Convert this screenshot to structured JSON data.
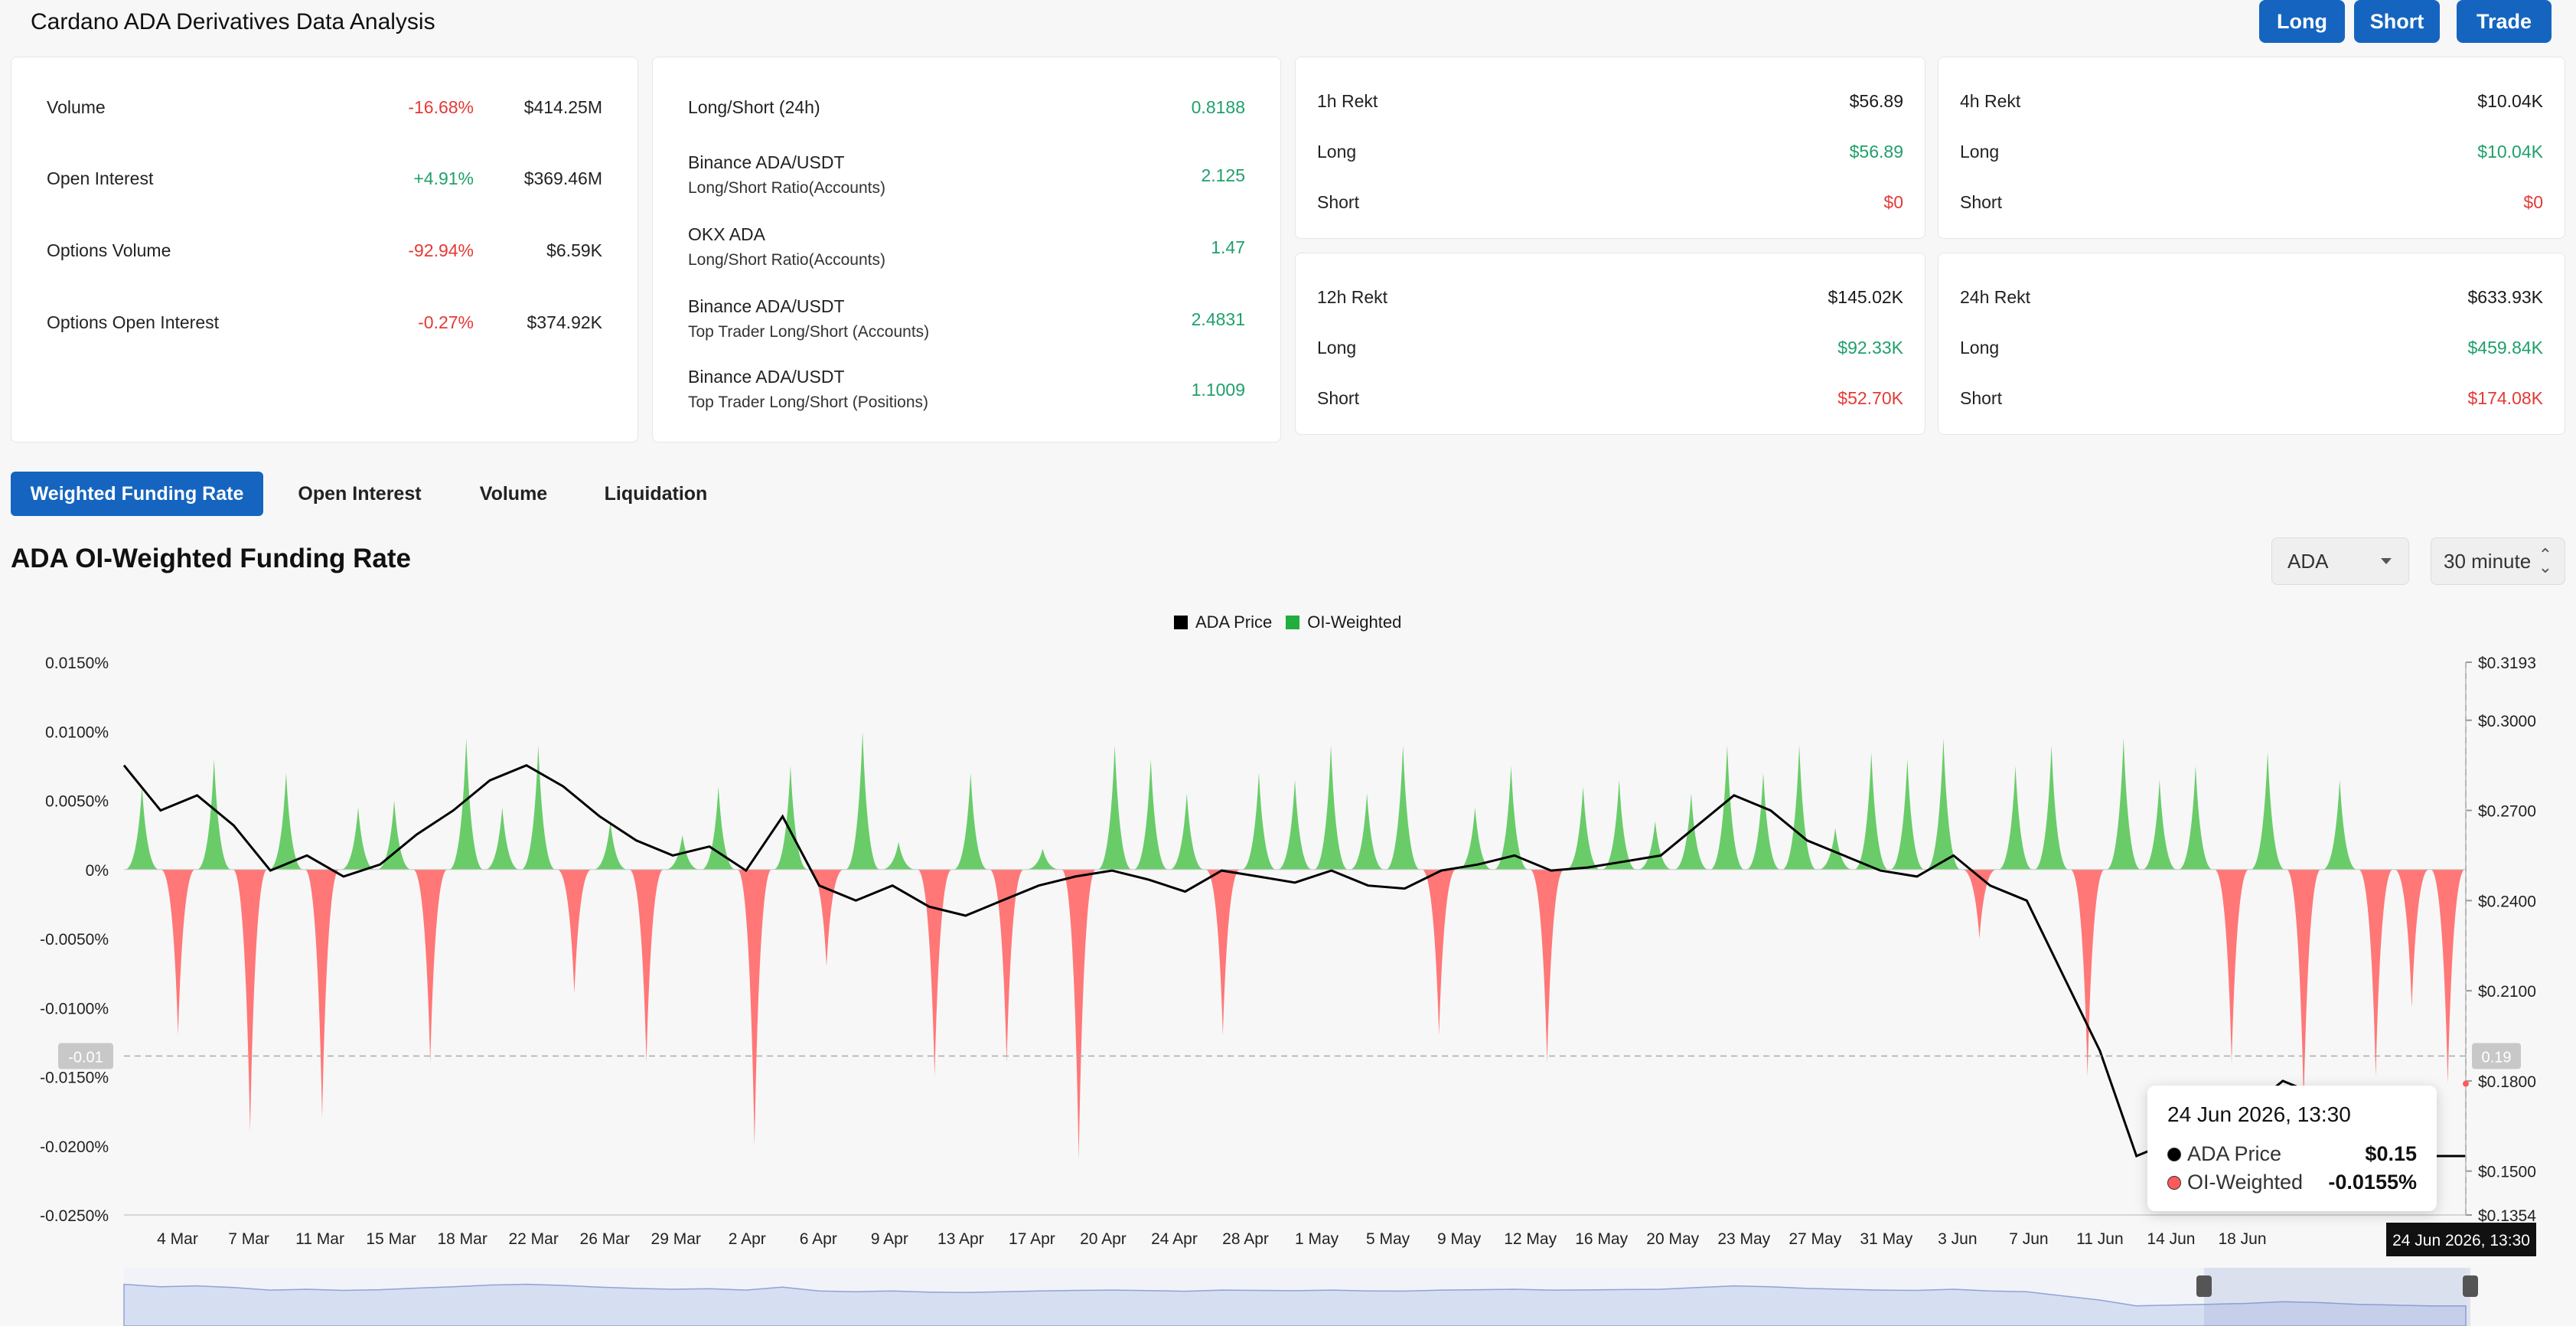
{
  "header": {
    "title": "Cardano ADA Derivatives Data Analysis",
    "buttons": {
      "long": "Long",
      "short": "Short",
      "trade": "Trade"
    },
    "accent": "#1565c0"
  },
  "summary": [
    {
      "label": "Volume",
      "change": "-16.68%",
      "value": "$414.25M"
    },
    {
      "label": "Open Interest",
      "change": "+4.91%",
      "value": "$369.46M"
    },
    {
      "label": "Options Volume",
      "change": "-92.94%",
      "value": "$6.59K"
    },
    {
      "label": "Options Open Interest",
      "change": "-0.27%",
      "value": "$374.92K"
    }
  ],
  "long_short": [
    {
      "label": "Long/Short (24h)",
      "sub": "",
      "value": "0.8188"
    },
    {
      "label": "Binance ADA/USDT",
      "sub": "Long/Short Ratio(Accounts)",
      "value": "2.125"
    },
    {
      "label": "OKX ADA",
      "sub": "Long/Short Ratio(Accounts)",
      "value": "1.47"
    },
    {
      "label": "Binance ADA/USDT",
      "sub": "Top Trader Long/Short (Accounts)",
      "value": "2.4831"
    },
    {
      "label": "Binance ADA/USDT",
      "sub": "Top Trader Long/Short (Positions)",
      "value": "1.1009"
    }
  ],
  "rekt": [
    {
      "title": "1h Rekt",
      "total": "$56.89",
      "long_label": "Long",
      "long": "$56.89",
      "short_label": "Short",
      "short": "$0"
    },
    {
      "title": "4h Rekt",
      "total": "$10.04K",
      "long_label": "Long",
      "long": "$10.04K",
      "short_label": "Short",
      "short": "$0"
    },
    {
      "title": "12h Rekt",
      "total": "$145.02K",
      "long_label": "Long",
      "long": "$92.33K",
      "short_label": "Short",
      "short": "$52.70K"
    },
    {
      "title": "24h Rekt",
      "total": "$633.93K",
      "long_label": "Long",
      "long": "$459.84K",
      "short_label": "Short",
      "short": "$174.08K"
    }
  ],
  "tabs": [
    "Weighted Funding Rate",
    "Open Interest",
    "Volume",
    "Liquidation"
  ],
  "section": {
    "title": "ADA OI-Weighted Funding Rate",
    "coin_select": "ADA",
    "interval_select": "30 minute"
  },
  "chart_data": {
    "type": "area",
    "title": "",
    "legend": [
      "ADA Price",
      "OI-Weighted"
    ],
    "legend_placement": "top-center",
    "colors": {
      "price": "#000000",
      "positive": "#5cc85c",
      "negative": "#ff6b6b"
    },
    "x_ticks": [
      "4 Mar",
      "7 Mar",
      "11 Mar",
      "15 Mar",
      "18 Mar",
      "22 Mar",
      "26 Mar",
      "29 Mar",
      "2 Apr",
      "6 Apr",
      "9 Apr",
      "13 Apr",
      "17 Apr",
      "20 Apr",
      "24 Apr",
      "28 Apr",
      "1 May",
      "5 May",
      "9 May",
      "12 May",
      "16 May",
      "20 May",
      "23 May",
      "27 May",
      "31 May",
      "3 Jun",
      "7 Jun",
      "11 Jun",
      "14 Jun",
      "18 Jun"
    ],
    "y_left_ticks": [
      "0.0150%",
      "0.0100%",
      "0.0050%",
      "0%",
      "-0.0050%",
      "-0.0100%",
      "-0.0150%",
      "-0.0200%",
      "-0.0250%"
    ],
    "y_left_range": [
      -0.025,
      0.015
    ],
    "y_right_ticks": [
      "$0.3193",
      "$0.3000",
      "$0.2700",
      "$0.2400",
      "$0.2100",
      "$0.1800",
      "$0.1500",
      "$0.1354"
    ],
    "y_right_range": [
      0.1354,
      0.3193
    ],
    "crosshair": {
      "left_label": "-0.01",
      "right_label": "0.19",
      "x_label": "24 Jun 2026, 13:30"
    },
    "price_series": [
      0.285,
      0.27,
      0.275,
      0.265,
      0.25,
      0.255,
      0.248,
      0.252,
      0.262,
      0.27,
      0.28,
      0.285,
      0.278,
      0.268,
      0.26,
      0.255,
      0.258,
      0.25,
      0.268,
      0.245,
      0.24,
      0.245,
      0.238,
      0.235,
      0.24,
      0.245,
      0.248,
      0.25,
      0.247,
      0.243,
      0.25,
      0.248,
      0.246,
      0.25,
      0.245,
      0.244,
      0.25,
      0.252,
      0.255,
      0.25,
      0.251,
      0.253,
      0.255,
      0.265,
      0.275,
      0.27,
      0.26,
      0.255,
      0.25,
      0.248,
      0.255,
      0.245,
      0.24,
      0.215,
      0.19,
      0.155,
      0.16,
      0.165,
      0.17,
      0.18,
      0.175,
      0.165,
      0.16,
      0.155,
      0.155
    ],
    "funding_series": [
      0.006,
      -0.012,
      0.008,
      -0.019,
      0.007,
      -0.018,
      0.0045,
      0.005,
      -0.014,
      0.0095,
      0.0045,
      0.009,
      -0.009,
      0.0035,
      -0.014,
      0.0025,
      0.006,
      -0.02,
      0.0075,
      -0.007,
      0.01,
      0.002,
      -0.015,
      0.007,
      -0.014,
      0.0015,
      -0.021,
      0.009,
      0.008,
      0.0055,
      -0.012,
      0.007,
      0.0065,
      0.009,
      0.0055,
      0.009,
      -0.012,
      0.0045,
      0.0075,
      -0.014,
      0.006,
      0.0065,
      0.0035,
      0.0055,
      0.009,
      0.007,
      0.009,
      0.003,
      0.0085,
      0.008,
      0.0095,
      -0.005,
      0.0075,
      0.009,
      -0.015,
      0.0095,
      0.0065,
      0.0075,
      -0.014,
      0.0085,
      -0.017,
      0.0065,
      -0.015,
      -0.01,
      -0.0155
    ]
  },
  "tooltip": {
    "date": "24 Jun 2026, 13:30",
    "price_label": "ADA Price",
    "price": "$0.15",
    "funding_label": "OI-Weighted",
    "funding": "-0.0155%"
  }
}
